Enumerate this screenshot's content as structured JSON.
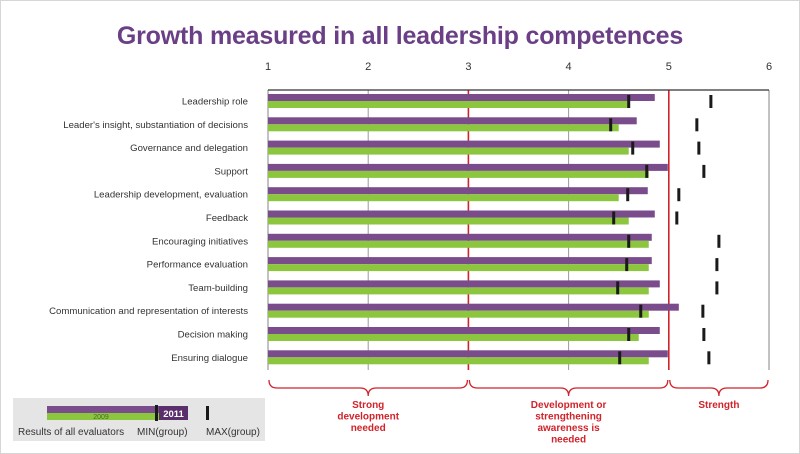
{
  "title": "Growth measured in all leadership competences",
  "colors": {
    "title": "#6a3f86",
    "bar_2011": "#7a4c8c",
    "bar_2009": "#8cc63f",
    "min_marker": "#1a1a1a",
    "max_marker": "#1a1a1a",
    "threshold_line": "#d1232a",
    "grid_line": "#9a9a9a",
    "axis_line": "#333333",
    "legend_bg": "#e5e5e5"
  },
  "chart_data": {
    "type": "bar",
    "orientation": "horizontal",
    "xlim": [
      1,
      6
    ],
    "x_ticks": [
      "1",
      "2",
      "3",
      "4",
      "5",
      "6"
    ],
    "grid": true,
    "categories": [
      "Leadership role",
      "Leader's insight, substantiation of decisions",
      "Governance and delegation",
      "Support",
      "Leadership development, evaluation",
      "Feedback",
      "Encouraging initiatives",
      "Performance evaluation",
      "Team-building",
      "Communication and representation of interests",
      "Decision making",
      "Ensuring dialogue"
    ],
    "series": [
      {
        "name": "2011",
        "values": [
          4.86,
          4.68,
          4.91,
          4.99,
          4.79,
          4.86,
          4.83,
          4.83,
          4.91,
          5.1,
          4.91,
          4.99
        ]
      },
      {
        "name": "2009",
        "values": [
          4.6,
          4.5,
          4.6,
          4.8,
          4.5,
          4.6,
          4.8,
          4.8,
          4.8,
          4.8,
          4.7,
          4.8
        ]
      }
    ],
    "min_group": [
      4.6,
      4.42,
      4.64,
      4.78,
      4.59,
      4.45,
      4.6,
      4.58,
      4.49,
      4.72,
      4.6,
      4.51
    ],
    "max_group": [
      5.42,
      5.28,
      5.3,
      5.35,
      5.1,
      5.08,
      5.5,
      5.48,
      5.48,
      5.34,
      5.35,
      5.4
    ],
    "thresholds": [
      3,
      5
    ],
    "zones": [
      {
        "label": "Strong development needed",
        "from": 1,
        "to": 3
      },
      {
        "label": "Development or strengthening awareness is needed",
        "from": 3,
        "to": 5
      },
      {
        "label": "Strength",
        "from": 5,
        "to": 6
      }
    ],
    "legend": {
      "position": "bottom-left",
      "results_label": "Results of all evaluators",
      "min_label": "MIN(group)",
      "max_label": "MAX(group)",
      "label_2009": "2009",
      "label_2011": "2011"
    }
  }
}
